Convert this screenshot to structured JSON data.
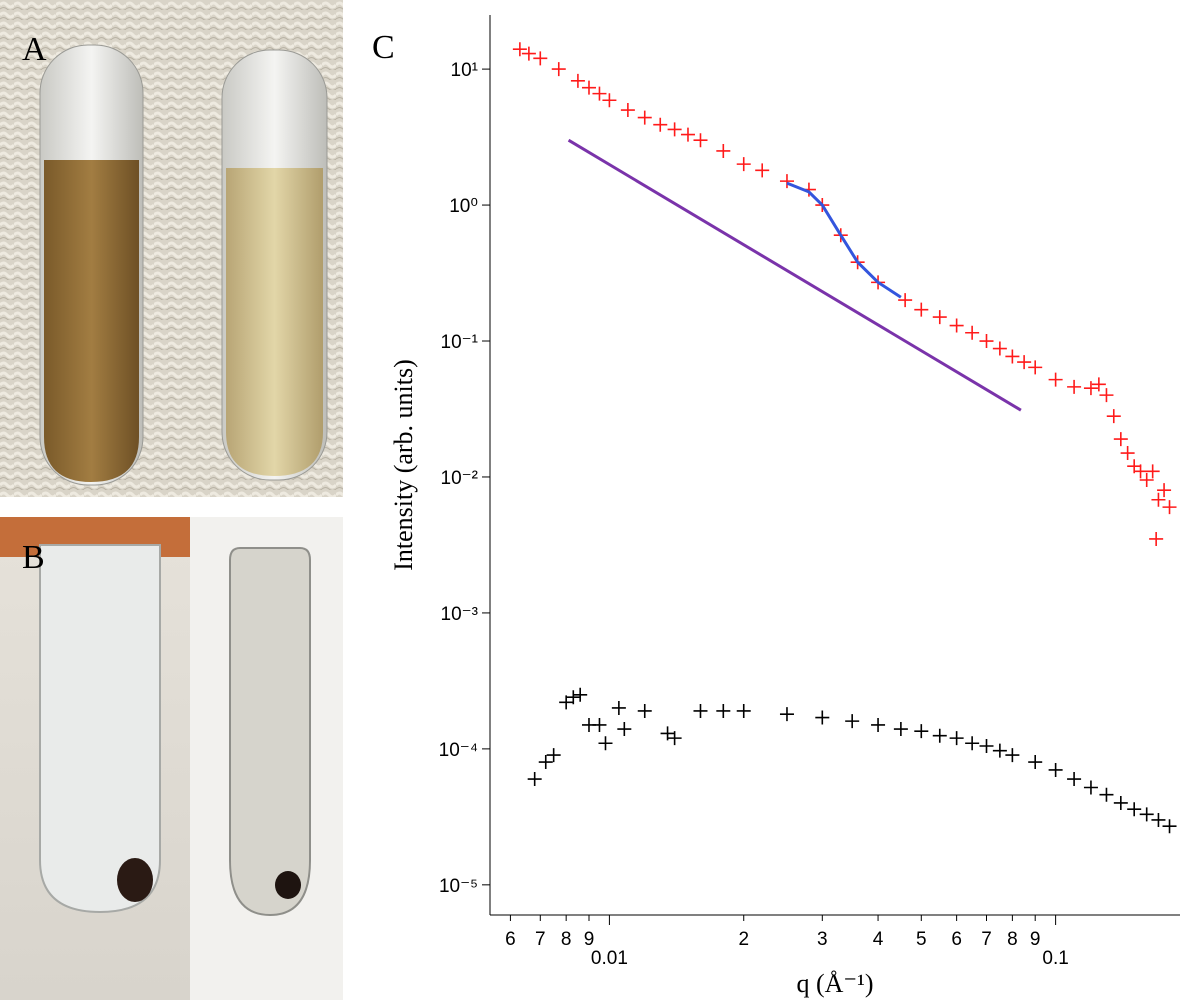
{
  "panel_labels": [
    "A",
    "B",
    "C"
  ],
  "chart_data": {
    "type": "scatter",
    "x_label": "q (Å⁻¹)",
    "y_label": "Intensity (arb. units)",
    "xscale": "log",
    "yscale": "log",
    "xlim": [
      0.0054,
      0.19
    ],
    "ylim": [
      6e-06,
      25
    ],
    "xticks": [
      {
        "value": 0.006,
        "label": "6"
      },
      {
        "value": 0.007,
        "label": "7"
      },
      {
        "value": 0.008,
        "label": "8"
      },
      {
        "value": 0.009,
        "label": "9"
      },
      0.01,
      {
        "value": 0.02,
        "label": "2"
      },
      {
        "value": 0.03,
        "label": "3"
      },
      {
        "value": 0.04,
        "label": "4"
      },
      {
        "value": 0.05,
        "label": "5"
      },
      {
        "value": 0.06,
        "label": "6"
      },
      {
        "value": 0.07,
        "label": "7"
      },
      {
        "value": 0.08,
        "label": "8"
      },
      {
        "value": 0.09,
        "label": "9"
      },
      0.1
    ],
    "yticks": [
      {
        "value": 10,
        "label": "10¹"
      },
      {
        "value": 1,
        "label": "10⁰"
      },
      {
        "value": 0.1,
        "label": "10⁻¹"
      },
      {
        "value": 0.01,
        "label": "10⁻²"
      },
      {
        "value": 0.001,
        "label": "10⁻³"
      },
      {
        "value": 0.0001,
        "label": "10⁻⁴"
      },
      {
        "value": 1e-05,
        "label": "10⁻⁵"
      }
    ],
    "series": [
      {
        "style": "plus",
        "color": "#ff1a1a",
        "x": [
          0.0063,
          0.0066,
          0.007,
          0.0077,
          0.0085,
          0.009,
          0.0095,
          0.01,
          0.011,
          0.012,
          0.013,
          0.014,
          0.015,
          0.016,
          0.018,
          0.02,
          0.022,
          0.025,
          0.028,
          0.03,
          0.033,
          0.036,
          0.04,
          0.046,
          0.05,
          0.055,
          0.06,
          0.065,
          0.07,
          0.075,
          0.08,
          0.085,
          0.09,
          0.1,
          0.11,
          0.12,
          0.125,
          0.13,
          0.135,
          0.14,
          0.145,
          0.15,
          0.155,
          0.16,
          0.165,
          0.168,
          0.17,
          0.175,
          0.18
        ],
        "values": [
          14,
          13,
          12,
          10,
          8.2,
          7.3,
          6.6,
          5.9,
          5.0,
          4.4,
          3.9,
          3.6,
          3.3,
          3.0,
          2.5,
          2.0,
          1.8,
          1.5,
          1.3,
          1.0,
          0.6,
          0.38,
          0.27,
          0.2,
          0.17,
          0.15,
          0.13,
          0.115,
          0.1,
          0.088,
          0.077,
          0.07,
          0.064,
          0.052,
          0.046,
          0.045,
          0.048,
          0.04,
          0.028,
          0.019,
          0.015,
          0.012,
          0.011,
          0.0095,
          0.011,
          0.0035,
          0.0068,
          0.008,
          0.006
        ]
      },
      {
        "style": "line",
        "color": "#3355dd",
        "x": [
          0.025,
          0.028,
          0.03,
          0.033,
          0.036,
          0.04,
          0.045
        ],
        "values": [
          1.45,
          1.25,
          1.0,
          0.6,
          0.38,
          0.27,
          0.21
        ]
      },
      {
        "style": "line",
        "color": "#7a33aa",
        "x": [
          0.0081,
          0.0836
        ],
        "values": [
          3,
          0.031
        ]
      },
      {
        "style": "plus",
        "color": "#000000",
        "x": [
          0.0068,
          0.0072,
          0.0075,
          0.008,
          0.0083,
          0.0086,
          0.009,
          0.0095,
          0.0098,
          0.0105,
          0.0108,
          0.012,
          0.0135,
          0.014,
          0.016,
          0.018,
          0.02,
          0.025,
          0.03,
          0.035,
          0.04,
          0.045,
          0.05,
          0.055,
          0.06,
          0.065,
          0.07,
          0.075,
          0.08,
          0.09,
          0.1,
          0.11,
          0.12,
          0.13,
          0.14,
          0.15,
          0.16,
          0.17,
          0.18
        ],
        "values": [
          6e-05,
          8e-05,
          9e-05,
          0.00022,
          0.00024,
          0.00025,
          0.00015,
          0.00015,
          0.00011,
          0.0002,
          0.00014,
          0.00019,
          0.00013,
          0.00012,
          0.00019,
          0.00019,
          0.00019,
          0.00018,
          0.00017,
          0.00016,
          0.00015,
          0.00014,
          0.000135,
          0.000125,
          0.00012,
          0.00011,
          0.000105,
          9.7e-05,
          9e-05,
          8e-05,
          7e-05,
          6e-05,
          5.2e-05,
          4.6e-05,
          4e-05,
          3.6e-05,
          3.3e-05,
          3e-05,
          2.7e-05
        ]
      }
    ]
  }
}
